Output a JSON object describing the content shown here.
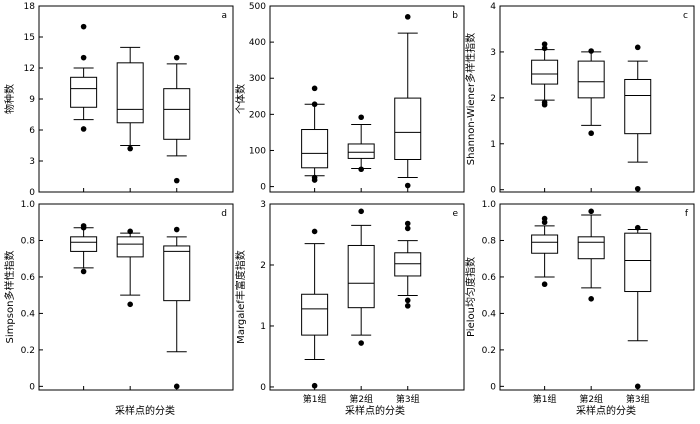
{
  "x_axis_title": "采样点的分类",
  "chart_data": [
    {
      "type": "box",
      "panel_label": "a",
      "ylabel": "物种数",
      "ylim": [
        0,
        18
      ],
      "yticks": [
        0,
        3,
        6,
        9,
        12,
        15,
        18
      ],
      "categories": [
        "第1组",
        "第2组",
        "第3组"
      ],
      "show_category_labels": false,
      "boxes": [
        {
          "whisker_low": 7.0,
          "q1": 8.2,
          "median": 10.0,
          "q3": 11.1,
          "whisker_high": 12.0,
          "outliers": [
            16.0,
            13.0,
            6.1
          ]
        },
        {
          "whisker_low": 4.5,
          "q1": 6.7,
          "median": 8.0,
          "q3": 12.5,
          "whisker_high": 14.0,
          "outliers": [
            4.2
          ]
        },
        {
          "whisker_low": 3.5,
          "q1": 5.1,
          "median": 8.0,
          "q3": 10.0,
          "whisker_high": 12.4,
          "outliers": [
            13.0,
            1.1
          ]
        }
      ]
    },
    {
      "type": "box",
      "panel_label": "b",
      "ylabel": "个体数",
      "ylim": [
        -15,
        500
      ],
      "yticks": [
        0,
        100,
        200,
        300,
        400,
        500
      ],
      "categories": [
        "第1组",
        "第2组",
        "第3组"
      ],
      "show_category_labels": false,
      "boxes": [
        {
          "whisker_low": 30,
          "q1": 52,
          "median": 92,
          "q3": 158,
          "whisker_high": 228,
          "outliers": [
            272,
            228,
            25,
            18
          ]
        },
        {
          "whisker_low": 50,
          "q1": 78,
          "median": 95,
          "q3": 118,
          "whisker_high": 172,
          "outliers": [
            192,
            48
          ]
        },
        {
          "whisker_low": 25,
          "q1": 75,
          "median": 150,
          "q3": 245,
          "whisker_high": 425,
          "outliers": [
            470,
            3
          ]
        }
      ]
    },
    {
      "type": "box",
      "panel_label": "c",
      "ylabel": "Shannon-Wiener多样性指数",
      "ylim": [
        -0.05,
        4
      ],
      "yticks": [
        0,
        1,
        2,
        3,
        4
      ],
      "categories": [
        "第1组",
        "第2组",
        "第3组"
      ],
      "show_category_labels": false,
      "boxes": [
        {
          "whisker_low": 1.95,
          "q1": 2.3,
          "median": 2.52,
          "q3": 2.82,
          "whisker_high": 3.05,
          "outliers": [
            3.17,
            3.08,
            1.9,
            1.85
          ]
        },
        {
          "whisker_low": 1.4,
          "q1": 2.0,
          "median": 2.35,
          "q3": 2.8,
          "whisker_high": 3.0,
          "outliers": [
            3.02,
            1.23
          ]
        },
        {
          "whisker_low": 0.6,
          "q1": 1.22,
          "median": 2.05,
          "q3": 2.4,
          "whisker_high": 2.8,
          "outliers": [
            3.1,
            0.02
          ]
        }
      ]
    },
    {
      "type": "box",
      "panel_label": "d",
      "ylabel": "Simpson多样性指数",
      "ylim": [
        -0.02,
        1.0
      ],
      "yticks": [
        0,
        0.2,
        0.4,
        0.6,
        0.8,
        1.0
      ],
      "ytick_labels": [
        "0",
        "0.2",
        "0.4",
        "0.6",
        "0.8",
        "1.0"
      ],
      "categories": [
        "第1组",
        "第2组",
        "第3组"
      ],
      "show_category_labels": false,
      "boxes": [
        {
          "whisker_low": 0.65,
          "q1": 0.74,
          "median": 0.79,
          "q3": 0.82,
          "whisker_high": 0.87,
          "outliers": [
            0.88,
            0.87,
            0.63
          ]
        },
        {
          "whisker_low": 0.5,
          "q1": 0.71,
          "median": 0.78,
          "q3": 0.82,
          "whisker_high": 0.84,
          "outliers": [
            0.85,
            0.45
          ]
        },
        {
          "whisker_low": 0.19,
          "q1": 0.47,
          "median": 0.74,
          "q3": 0.77,
          "whisker_high": 0.82,
          "outliers": [
            0.86,
            0.0
          ]
        }
      ]
    },
    {
      "type": "box",
      "panel_label": "e",
      "ylabel": "Margalef丰富度指数",
      "ylim": [
        -0.05,
        3
      ],
      "yticks": [
        0,
        1,
        2,
        3
      ],
      "categories": [
        "第1组",
        "第2组",
        "第3组"
      ],
      "show_category_labels": true,
      "boxes": [
        {
          "whisker_low": 0.45,
          "q1": 0.85,
          "median": 1.28,
          "q3": 1.52,
          "whisker_high": 2.35,
          "outliers": [
            2.55,
            0.02
          ]
        },
        {
          "whisker_low": 0.85,
          "q1": 1.3,
          "median": 1.7,
          "q3": 2.32,
          "whisker_high": 2.65,
          "outliers": [
            2.88,
            0.72
          ]
        },
        {
          "whisker_low": 1.5,
          "q1": 1.82,
          "median": 2.02,
          "q3": 2.2,
          "whisker_high": 2.4,
          "outliers": [
            2.68,
            2.6,
            1.42,
            1.33
          ]
        }
      ]
    },
    {
      "type": "box",
      "panel_label": "f",
      "ylabel": "Pielou均匀度指数",
      "ylim": [
        -0.02,
        1.0
      ],
      "yticks": [
        0,
        0.2,
        0.4,
        0.6,
        0.8,
        1.0
      ],
      "ytick_labels": [
        "0",
        "0.2",
        "0.4",
        "0.6",
        "0.8",
        "1.0"
      ],
      "categories": [
        "第1组",
        "第2组",
        "第3组"
      ],
      "show_category_labels": true,
      "boxes": [
        {
          "whisker_low": 0.6,
          "q1": 0.73,
          "median": 0.79,
          "q3": 0.83,
          "whisker_high": 0.88,
          "outliers": [
            0.92,
            0.9,
            0.56
          ]
        },
        {
          "whisker_low": 0.54,
          "q1": 0.7,
          "median": 0.79,
          "q3": 0.82,
          "whisker_high": 0.94,
          "outliers": [
            0.96,
            0.48
          ]
        },
        {
          "whisker_low": 0.25,
          "q1": 0.52,
          "median": 0.69,
          "q3": 0.84,
          "whisker_high": 0.86,
          "outliers": [
            0.87,
            0.0
          ]
        }
      ]
    }
  ]
}
